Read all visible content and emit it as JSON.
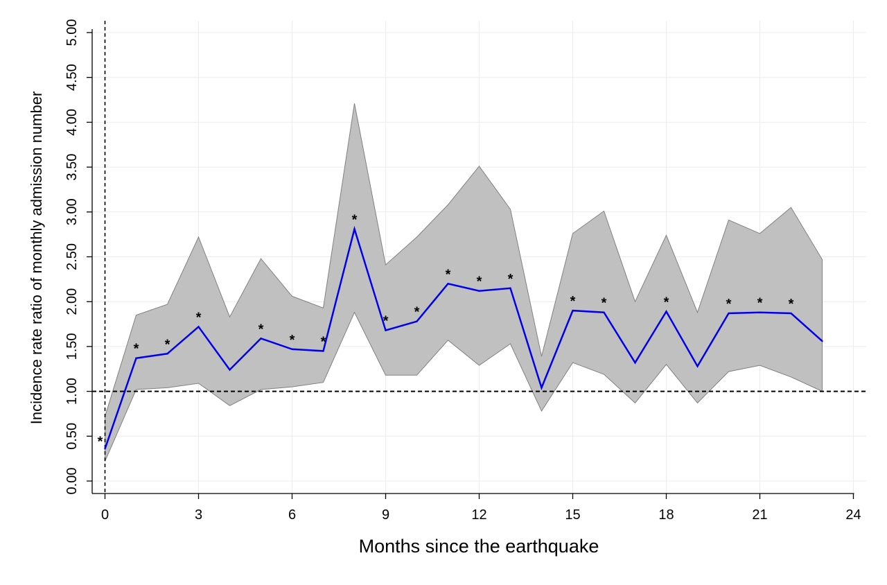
{
  "chart_data": {
    "type": "line",
    "title": "",
    "xlabel": "Months since the earthquake",
    "ylabel": "Incidence rate ratio of monthly admission number",
    "xlim": [
      0,
      24
    ],
    "ylim": [
      0,
      5
    ],
    "x_ticks": [
      "0",
      "3",
      "6",
      "9",
      "12",
      "15",
      "18",
      "21",
      "24"
    ],
    "y_ticks": [
      "0.00",
      "0.50",
      "1.00",
      "1.50",
      "2.00",
      "2.50",
      "3.00",
      "3.50",
      "4.00",
      "4.50",
      "5.00"
    ],
    "grid": true,
    "reference_lines": {
      "vertical_x": 0,
      "horizontal_y": 1.0,
      "style": "dashed"
    },
    "significance_marker": "*",
    "colors": {
      "line": "#0000ee",
      "band": "#c0c0c0",
      "band_edge": "#808080"
    },
    "series": [
      {
        "x": [
          0,
          1,
          2,
          3,
          4,
          5,
          6,
          7,
          8,
          9,
          10,
          11,
          12,
          13,
          14,
          15,
          16,
          17,
          18,
          19,
          20,
          21,
          22,
          23
        ],
        "values": [
          0.36,
          1.37,
          1.42,
          1.72,
          1.24,
          1.59,
          1.47,
          1.45,
          2.81,
          1.68,
          1.78,
          2.2,
          2.12,
          2.15,
          1.04,
          1.9,
          1.88,
          1.32,
          1.89,
          1.28,
          1.87,
          1.88,
          1.87,
          1.56
        ],
        "ci_upper": [
          0.72,
          1.85,
          1.97,
          2.72,
          1.83,
          2.48,
          2.06,
          1.93,
          4.21,
          2.41,
          2.72,
          3.08,
          3.51,
          3.03,
          1.39,
          2.76,
          3.01,
          2.0,
          2.74,
          1.88,
          2.91,
          2.76,
          3.05,
          2.47
        ],
        "ci_lower": [
          0.22,
          1.02,
          1.04,
          1.09,
          0.84,
          1.02,
          1.05,
          1.1,
          1.88,
          1.18,
          1.18,
          1.57,
          1.29,
          1.53,
          0.78,
          1.32,
          1.19,
          0.87,
          1.3,
          0.87,
          1.22,
          1.29,
          1.16,
          1.0
        ],
        "significant": [
          true,
          true,
          true,
          true,
          false,
          true,
          true,
          true,
          true,
          true,
          true,
          true,
          true,
          true,
          false,
          true,
          true,
          false,
          true,
          false,
          true,
          true,
          true,
          false
        ]
      }
    ]
  }
}
